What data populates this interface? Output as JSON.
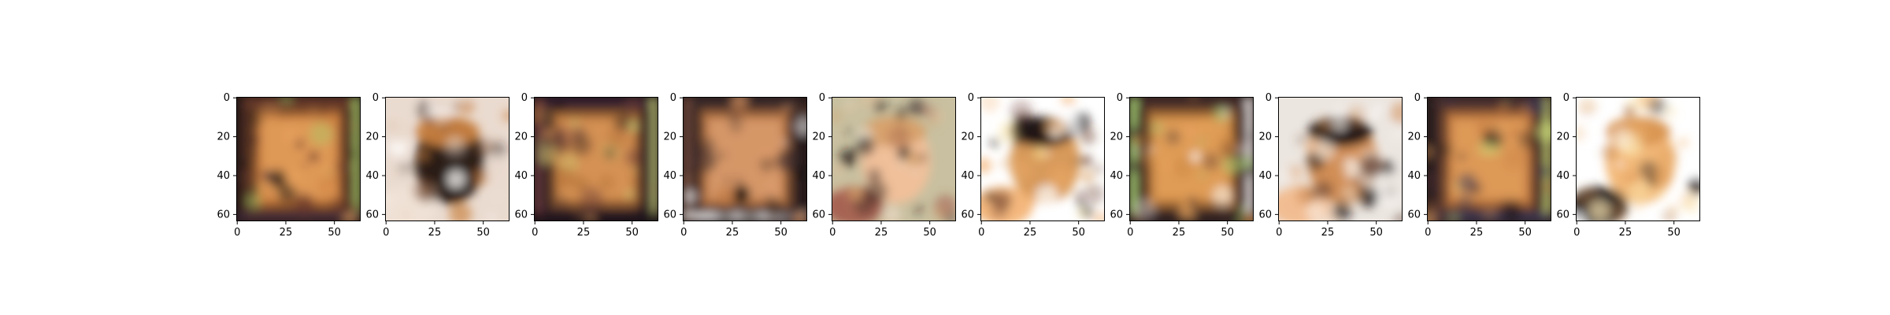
{
  "figure": {
    "background": "#ffffff",
    "panel_count": 10,
    "image_resolution": 64,
    "x_ticks": [
      "0",
      "25",
      "50"
    ],
    "y_ticks": [
      "0",
      "20",
      "40",
      "60"
    ],
    "panels": [
      {
        "id": "panel-1",
        "subject": "blurry-square-frame-face",
        "palette": [
          "#6b3a2a",
          "#c97b3c",
          "#e8a25e",
          "#3d2b3d",
          "#1a1412",
          "#a3d26a"
        ],
        "background": "#2a1a18"
      },
      {
        "id": "panel-2",
        "subject": "blurry-face-light-bg",
        "palette": [
          "#e7d6c8",
          "#c8803e",
          "#2a1b16",
          "#f1e2d6",
          "#8a5a3a",
          "#ffffff"
        ],
        "background": "#eadbd0"
      },
      {
        "id": "panel-3",
        "subject": "blurry-square-frame-face-dark",
        "palette": [
          "#3a2430",
          "#b8763c",
          "#e09a5a",
          "#1a1218",
          "#6a3b3a",
          "#c9d27a"
        ],
        "background": "#1d1418"
      },
      {
        "id": "panel-4",
        "subject": "blurry-face-frame-light-corner",
        "palette": [
          "#3b2a2c",
          "#bf7a46",
          "#e0a070",
          "#ffffff",
          "#6f4a3a",
          "#1a1210"
        ],
        "background": "#281a1a"
      },
      {
        "id": "panel-5",
        "subject": "blurry-face-dark-hair",
        "palette": [
          "#1b1212",
          "#d6a06a",
          "#f0c09a",
          "#a35a4a",
          "#e5e0d0",
          "#3b2a2a"
        ],
        "background": "#c8c0a0"
      },
      {
        "id": "panel-6",
        "subject": "blurry-face-white-bg",
        "palette": [
          "#ffffff",
          "#1a1212",
          "#d89a5a",
          "#f3b070",
          "#6a3a2a",
          "#f6d98a"
        ],
        "background": "#ffffff"
      },
      {
        "id": "panel-7",
        "subject": "blurry-square-frame-face",
        "palette": [
          "#4a2e2a",
          "#c9843e",
          "#e8a45e",
          "#2a1e22",
          "#a4cc72",
          "#ffffff"
        ],
        "background": "#2c1e1c"
      },
      {
        "id": "panel-8",
        "subject": "blurry-face-dark-hair-light-bg",
        "palette": [
          "#f0ece6",
          "#1a1210",
          "#d18e56",
          "#f2b888",
          "#5a3a30",
          "#ffffff"
        ],
        "background": "#ece6e0"
      },
      {
        "id": "panel-9",
        "subject": "blurry-square-frame-face",
        "palette": [
          "#4b3030",
          "#c77c40",
          "#e6a25e",
          "#3a3a5a",
          "#1a1216",
          "#cfe07a"
        ],
        "background": "#2e1e1e"
      },
      {
        "id": "panel-10",
        "subject": "blurry-face-white-bg-dark-corner",
        "palette": [
          "#ffffff",
          "#d89350",
          "#f2b878",
          "#1a1212",
          "#a05c30",
          "#fbe6b0"
        ],
        "background": "#ffffff"
      }
    ]
  }
}
